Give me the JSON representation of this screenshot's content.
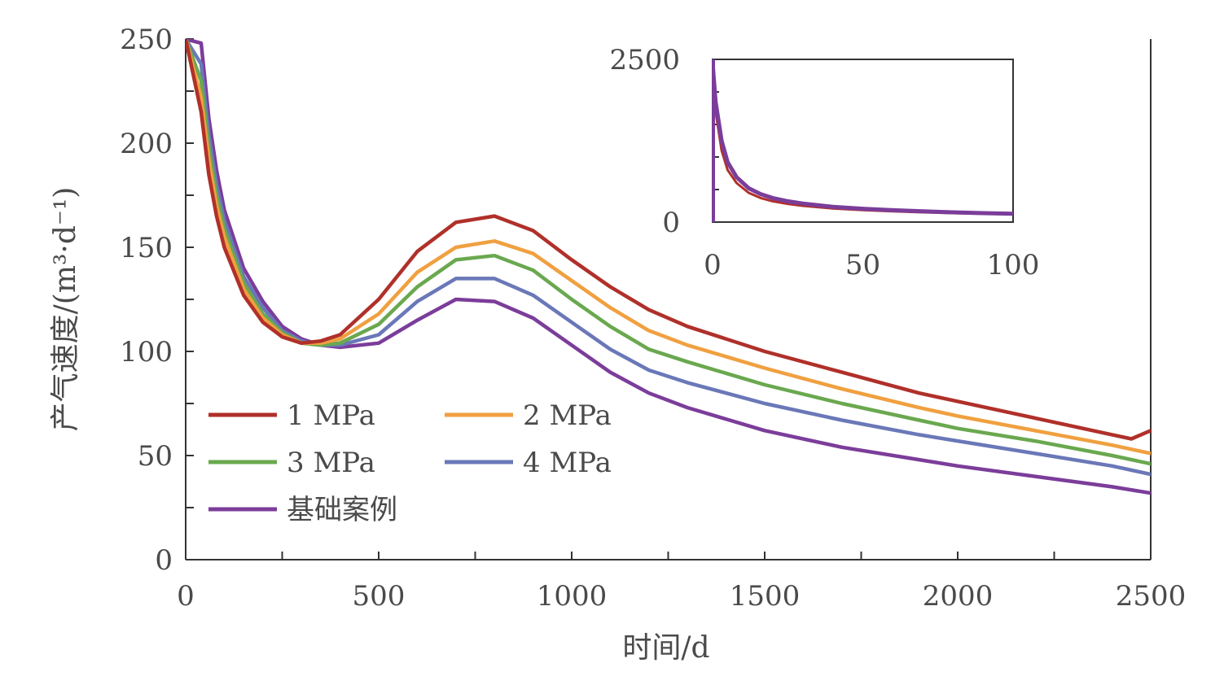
{
  "chart_data": {
    "type": "line",
    "xlabel": "时间/d",
    "ylabel": "产气速度/(m³·d⁻¹)",
    "xlim": [
      0,
      2500
    ],
    "ylim": [
      0,
      250
    ],
    "xticks": [
      "0",
      "500",
      "1000",
      "1500",
      "2000",
      "2500"
    ],
    "yticks": [
      "0",
      "50",
      "100",
      "150",
      "200",
      "250"
    ],
    "legend_position": "bottom-left",
    "series": [
      {
        "name": "1 MPa",
        "color": "#b0302a",
        "x": [
          0,
          40,
          60,
          80,
          100,
          150,
          200,
          250,
          300,
          350,
          400,
          500,
          600,
          700,
          800,
          900,
          1000,
          1100,
          1200,
          1300,
          1500,
          1700,
          1900,
          2000,
          2200,
          2400,
          2450,
          2500
        ],
        "y": [
          250,
          215,
          185,
          165,
          150,
          127,
          114,
          107,
          104,
          105,
          108,
          125,
          148,
          162,
          165,
          158,
          144,
          131,
          120,
          112,
          100,
          90,
          80,
          76,
          68,
          60,
          58,
          62
        ]
      },
      {
        "name": "2 MPa",
        "color": "#f0a040",
        "x": [
          0,
          40,
          60,
          80,
          100,
          150,
          200,
          250,
          300,
          350,
          400,
          500,
          600,
          700,
          800,
          900,
          1000,
          1100,
          1200,
          1300,
          1500,
          1700,
          1900,
          2000,
          2200,
          2400,
          2500
        ],
        "y": [
          250,
          222,
          192,
          170,
          155,
          130,
          116,
          108,
          104,
          104,
          106,
          118,
          138,
          150,
          153,
          147,
          134,
          121,
          110,
          103,
          92,
          82,
          73,
          69,
          62,
          55,
          51
        ]
      },
      {
        "name": "3 MPa",
        "color": "#6aa84f",
        "x": [
          0,
          40,
          60,
          80,
          100,
          150,
          200,
          250,
          300,
          350,
          400,
          500,
          600,
          700,
          800,
          900,
          1000,
          1100,
          1200,
          1300,
          1500,
          1700,
          1900,
          2000,
          2200,
          2400,
          2500
        ],
        "y": [
          250,
          230,
          198,
          175,
          159,
          133,
          118,
          109,
          104,
          103,
          104,
          113,
          131,
          144,
          146,
          139,
          125,
          112,
          101,
          95,
          84,
          75,
          67,
          63,
          57,
          50,
          46
        ]
      },
      {
        "name": "4 MPa",
        "color": "#6a78b8",
        "x": [
          0,
          40,
          60,
          80,
          100,
          150,
          200,
          250,
          300,
          350,
          400,
          500,
          600,
          700,
          800,
          900,
          1000,
          1100,
          1200,
          1300,
          1500,
          1700,
          1900,
          2000,
          2200,
          2400,
          2500
        ],
        "y": [
          250,
          238,
          204,
          180,
          163,
          136,
          121,
          110,
          105,
          103,
          103,
          108,
          124,
          135,
          135,
          127,
          114,
          101,
          91,
          85,
          75,
          67,
          60,
          57,
          51,
          45,
          41
        ]
      },
      {
        "name": "基础案例",
        "color": "#7b3d9a",
        "x": [
          0,
          40,
          60,
          80,
          100,
          150,
          200,
          250,
          300,
          350,
          400,
          500,
          600,
          700,
          800,
          900,
          1000,
          1100,
          1200,
          1300,
          1500,
          1700,
          1900,
          2000,
          2200,
          2400,
          2500
        ],
        "y": [
          250,
          248,
          212,
          187,
          168,
          140,
          124,
          112,
          106,
          103,
          102,
          104,
          115,
          125,
          124,
          116,
          103,
          90,
          80,
          73,
          62,
          54,
          48,
          45,
          40,
          35,
          32
        ]
      }
    ],
    "inset": {
      "type": "line",
      "xlim": [
        0,
        100
      ],
      "ylim": [
        0,
        2500
      ],
      "xticks": [
        "0",
        "50",
        "100"
      ],
      "yticks": [
        "0",
        "2500"
      ],
      "series": [
        {
          "name": "1 MPa",
          "color": "#b0302a",
          "x": [
            0,
            1,
            3,
            5,
            8,
            12,
            16,
            20,
            25,
            30,
            40,
            50,
            60,
            70,
            80,
            90,
            100
          ],
          "y": [
            2400,
            1700,
            1100,
            800,
            600,
            450,
            370,
            320,
            280,
            250,
            210,
            185,
            165,
            150,
            138,
            128,
            120
          ]
        },
        {
          "name": "基础案例",
          "color": "#7b3d9a",
          "x": [
            0,
            1,
            3,
            5,
            8,
            12,
            16,
            20,
            25,
            30,
            40,
            50,
            60,
            70,
            80,
            90,
            100
          ],
          "y": [
            2450,
            1850,
            1250,
            920,
            690,
            520,
            430,
            370,
            320,
            285,
            235,
            205,
            182,
            165,
            150,
            138,
            128
          ]
        }
      ]
    }
  }
}
